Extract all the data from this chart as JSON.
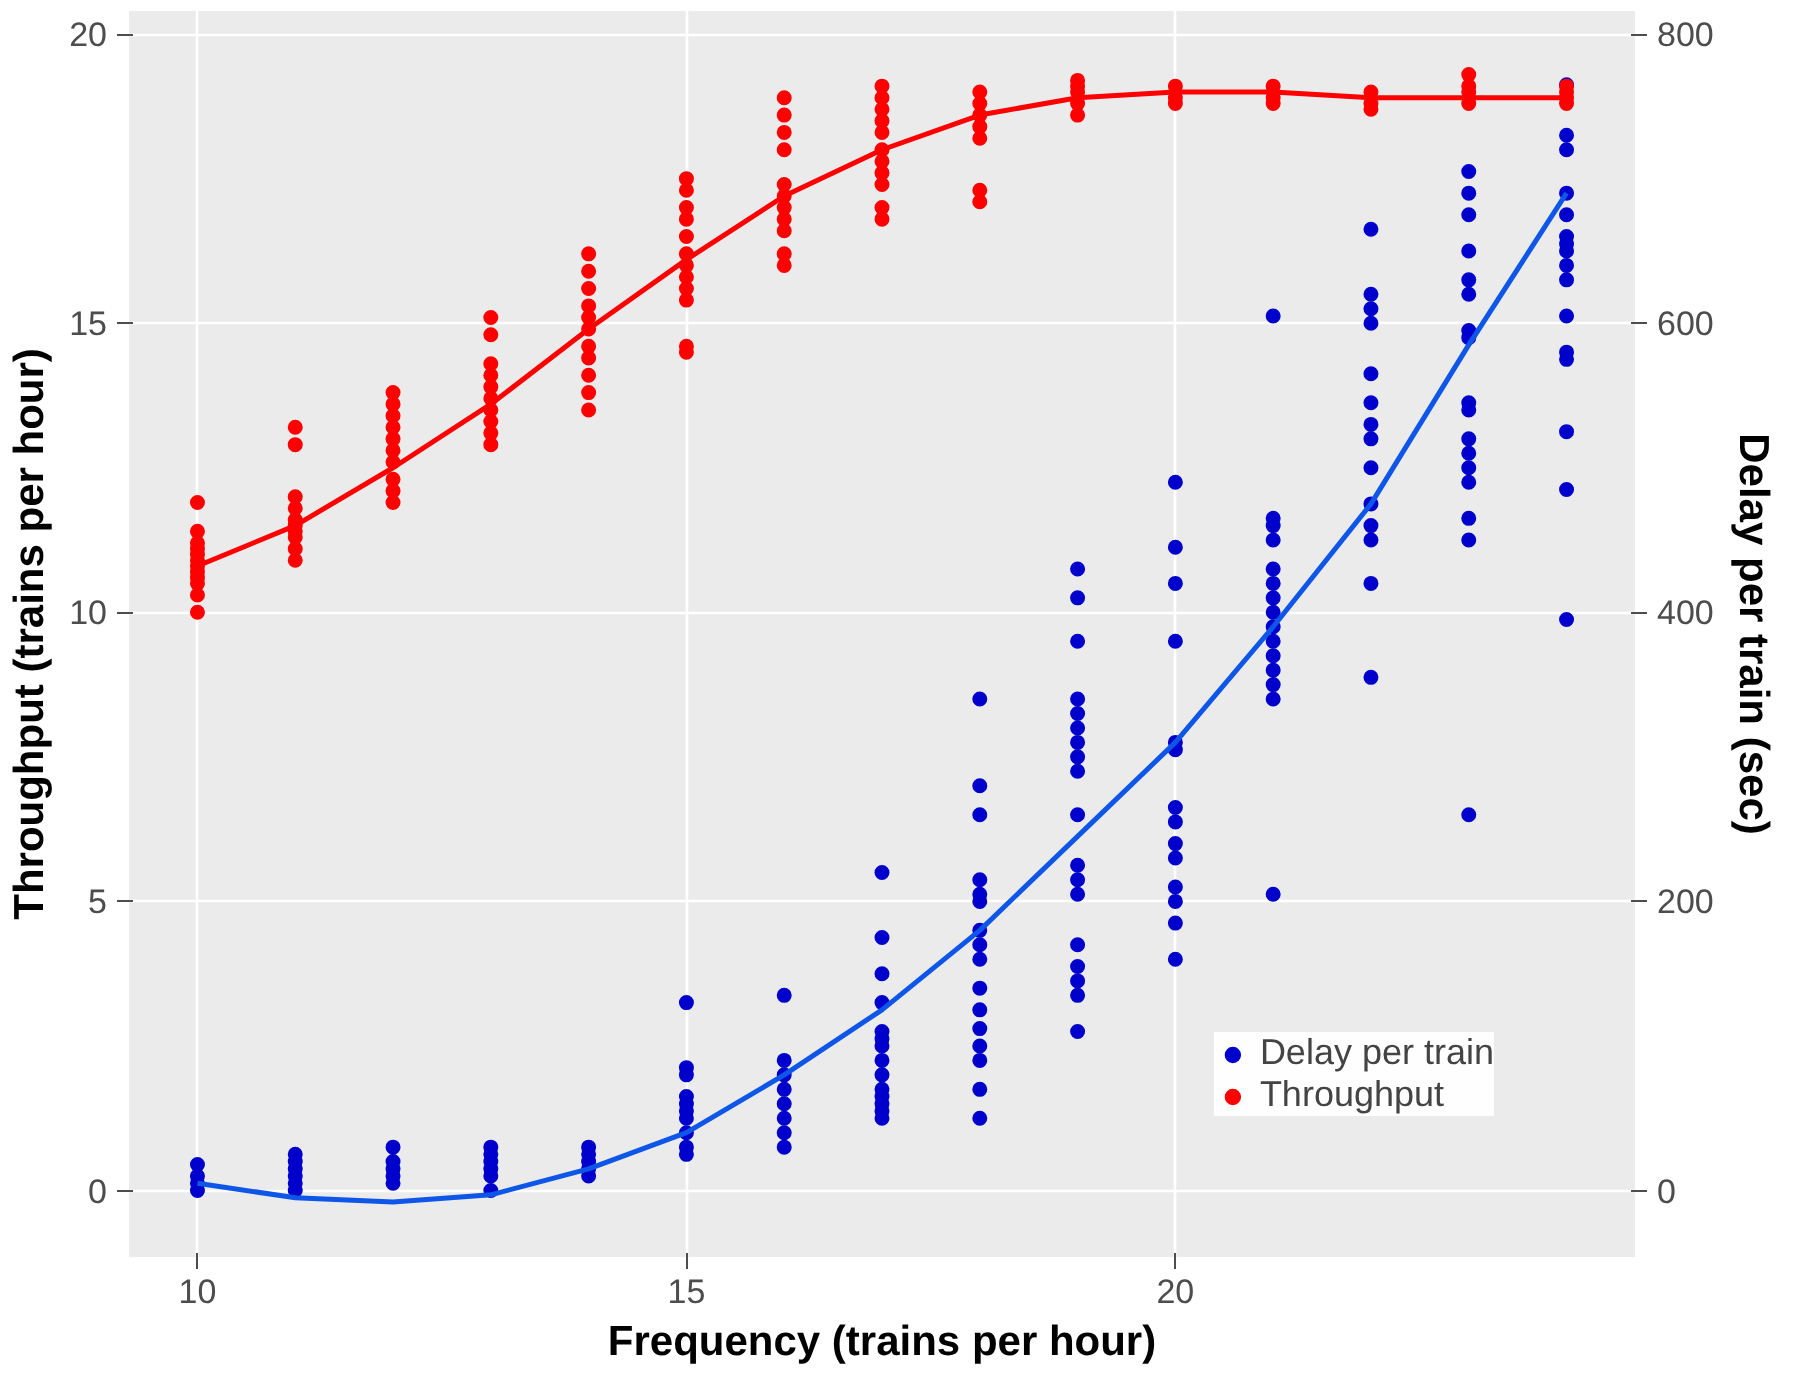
{
  "chart_data": {
    "type": "scatter",
    "xlabel": "Frequency (trains per hour)",
    "ylabel": "Throughput (trains per hour)",
    "y2label": "Delay per train (sec)",
    "xlim": [
      9.3,
      24.7
    ],
    "xticks": [
      10,
      15,
      20
    ],
    "ylim": [
      -1.15,
      20.4
    ],
    "yticks": [
      0,
      5,
      10,
      15,
      20
    ],
    "y2lim": [
      -46,
      816
    ],
    "y2ticks": [
      0,
      200,
      400,
      600,
      800
    ],
    "grid": true,
    "legend": "bottom right",
    "marker": "circle",
    "series": [
      {
        "name": "Delay per train",
        "color": "#0000cd",
        "axis": "y2",
        "x": [
          10,
          10,
          10,
          10,
          11,
          11,
          11,
          11,
          11,
          11,
          12,
          12,
          12,
          12,
          12,
          13,
          13,
          13,
          13,
          13,
          13,
          14,
          14,
          14,
          14,
          14,
          15,
          15,
          15,
          15,
          15,
          15,
          15,
          15,
          15,
          15,
          16,
          16,
          16,
          16,
          16,
          16,
          16,
          16,
          17,
          17,
          17,
          17,
          17,
          17,
          17,
          17,
          17,
          17,
          17,
          17,
          17,
          17,
          18,
          18,
          18,
          18,
          18,
          18,
          18,
          18,
          18,
          18,
          18,
          18,
          18,
          18,
          18,
          18,
          19,
          19,
          19,
          19,
          19,
          19,
          19,
          19,
          19,
          19,
          19,
          19,
          19,
          19,
          19,
          19,
          19,
          19,
          20,
          20,
          20,
          20,
          20,
          20,
          20,
          20,
          20,
          20,
          20,
          20,
          20,
          20,
          21,
          21,
          21,
          21,
          21,
          21,
          21,
          21,
          21,
          21,
          21,
          21,
          21,
          21,
          21,
          22,
          22,
          22,
          22,
          22,
          22,
          22,
          22,
          22,
          22,
          22,
          22,
          22,
          22,
          23,
          23,
          23,
          23,
          23,
          23,
          23,
          23,
          23,
          23,
          23,
          23,
          23,
          23,
          23,
          23,
          23,
          24,
          24,
          24,
          24,
          24,
          24,
          24,
          24,
          24,
          24,
          24,
          24,
          24,
          24,
          24,
          24
        ],
        "values": [
          0,
          5,
          10,
          18,
          0,
          5,
          10,
          15,
          20,
          25,
          5,
          10,
          15,
          20,
          30,
          0,
          10,
          15,
          20,
          25,
          30,
          10,
          15,
          20,
          25,
          30,
          25,
          30,
          40,
          50,
          55,
          60,
          65,
          80,
          85,
          130,
          30,
          40,
          50,
          60,
          70,
          80,
          90,
          135,
          50,
          55,
          60,
          65,
          70,
          80,
          90,
          100,
          105,
          110,
          130,
          150,
          175,
          220,
          50,
          70,
          90,
          100,
          112,
          125,
          140,
          160,
          170,
          180,
          200,
          205,
          215,
          260,
          280,
          340,
          110,
          135,
          145,
          155,
          170,
          205,
          215,
          225,
          260,
          290,
          300,
          310,
          320,
          330,
          340,
          380,
          410,
          430,
          160,
          185,
          200,
          210,
          230,
          240,
          255,
          265,
          305,
          310,
          380,
          420,
          445,
          490,
          205,
          340,
          350,
          360,
          370,
          380,
          390,
          400,
          410,
          420,
          430,
          450,
          460,
          465,
          605,
          355,
          420,
          450,
          460,
          475,
          500,
          520,
          530,
          545,
          565,
          600,
          610,
          620,
          665,
          260,
          450,
          465,
          490,
          500,
          510,
          520,
          540,
          545,
          590,
          595,
          620,
          630,
          650,
          675,
          690,
          705,
          395,
          485,
          525,
          575,
          580,
          605,
          630,
          640,
          650,
          655,
          660,
          675,
          690,
          720,
          730,
          765
        ]
      },
      {
        "name": "Throughput",
        "color": "#ff0000",
        "x": [
          10,
          10,
          10,
          10,
          10,
          10,
          10,
          10,
          10,
          10,
          10,
          10,
          11,
          11,
          11,
          11,
          11,
          11,
          11,
          11,
          11,
          11,
          12,
          12,
          12,
          12,
          12,
          12,
          12,
          12,
          12,
          12,
          13,
          13,
          13,
          13,
          13,
          13,
          13,
          13,
          13,
          13,
          14,
          14,
          14,
          14,
          14,
          14,
          14,
          14,
          14,
          14,
          14,
          15,
          15,
          15,
          15,
          15,
          15,
          15,
          15,
          15,
          15,
          15,
          15,
          16,
          16,
          16,
          16,
          16,
          16,
          16,
          16,
          16,
          16,
          16,
          17,
          17,
          17,
          17,
          17,
          17,
          17,
          17,
          17,
          17,
          17,
          18,
          18,
          18,
          18,
          18,
          18,
          18,
          19,
          19,
          19,
          19,
          19,
          20,
          20,
          20,
          21,
          21,
          21,
          22,
          22,
          22,
          23,
          23,
          23,
          23,
          24,
          24,
          24,
          24
        ],
        "values": [
          10.0,
          10.3,
          10.5,
          10.6,
          10.7,
          10.8,
          10.9,
          11.0,
          11.1,
          11.2,
          11.4,
          11.9,
          10.9,
          11.1,
          11.3,
          11.4,
          11.5,
          11.6,
          11.8,
          12.0,
          12.9,
          13.2,
          11.9,
          12.1,
          12.3,
          12.6,
          12.8,
          13.0,
          13.2,
          13.4,
          13.6,
          13.8,
          12.9,
          13.1,
          13.3,
          13.5,
          13.7,
          13.9,
          14.1,
          14.3,
          14.8,
          15.1,
          13.5,
          13.8,
          14.1,
          14.4,
          14.6,
          14.9,
          15.1,
          15.3,
          15.6,
          15.9,
          16.2,
          14.5,
          14.6,
          15.4,
          15.6,
          15.8,
          16.0,
          16.2,
          16.5,
          16.8,
          17.0,
          17.3,
          17.5,
          16.0,
          16.2,
          16.6,
          16.8,
          17.0,
          17.2,
          17.4,
          18.0,
          18.3,
          18.6,
          18.9,
          16.8,
          17.0,
          17.4,
          17.6,
          17.8,
          18.0,
          18.3,
          18.5,
          18.7,
          18.9,
          19.1,
          17.1,
          17.3,
          18.2,
          18.4,
          18.6,
          18.8,
          19.0,
          18.6,
          18.8,
          19.0,
          19.1,
          19.2,
          18.8,
          18.9,
          19.1,
          18.8,
          18.9,
          19.1,
          18.7,
          18.8,
          19.0,
          18.8,
          19.0,
          19.1,
          19.3,
          18.8,
          18.9,
          19.0,
          19.1
        ]
      },
      {
        "type": "line",
        "marker": "none",
        "color": "#0d56e8",
        "axis": "y2",
        "x": [
          10,
          11,
          12,
          13,
          14,
          15,
          16,
          17,
          18,
          19,
          20,
          21,
          22,
          23,
          24
        ],
        "values": [
          5,
          -5,
          -8,
          -3,
          15,
          40,
          80,
          125,
          180,
          245,
          310,
          390,
          475,
          585,
          690
        ]
      },
      {
        "type": "line",
        "marker": "none",
        "color": "#ff0000",
        "x": [
          10,
          11,
          12,
          13,
          14,
          15,
          16,
          17,
          18,
          19,
          20,
          21,
          22,
          23,
          24
        ],
        "values": [
          10.8,
          11.5,
          12.5,
          13.6,
          14.9,
          16.1,
          17.2,
          18.0,
          18.6,
          18.9,
          19.0,
          19.0,
          18.9,
          18.9,
          18.9
        ]
      }
    ]
  }
}
